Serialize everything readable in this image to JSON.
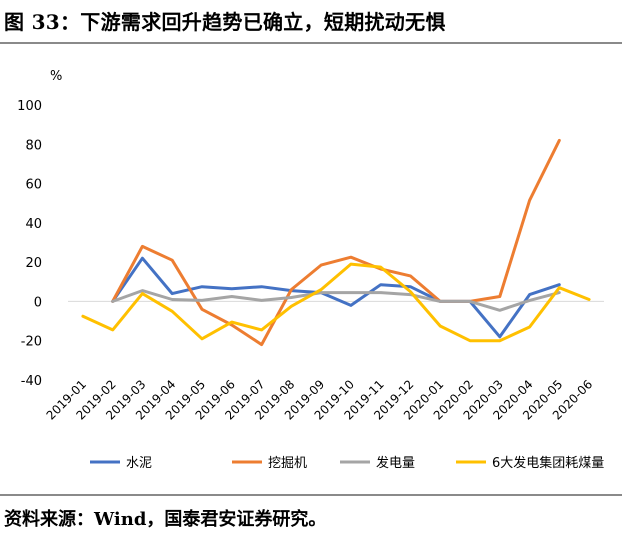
{
  "figure": {
    "title": "图 33：下游需求回升趋势已确立，短期扰动无惧",
    "source": "资料来源：Wind，国泰君安证券研究。"
  },
  "chart_data": {
    "type": "line",
    "ylabel": "%",
    "ylim": [
      -40,
      100
    ],
    "yticks": [
      -40,
      -20,
      0,
      20,
      40,
      60,
      80,
      100
    ],
    "grid": false,
    "legend_position": "bottom",
    "x": [
      "2019-01",
      "2019-02",
      "2019-03",
      "2019-04",
      "2019-05",
      "2019-06",
      "2019-07",
      "2019-08",
      "2019-09",
      "2019-10",
      "2019-11",
      "2019-12",
      "2020-01",
      "2020-02",
      "2020-03",
      "2020-04",
      "2020-05",
      "2020-06"
    ],
    "series": [
      {
        "name": "水泥",
        "color": "#4472C4",
        "values": [
          null,
          0,
          22,
          4,
          7.5,
          6.5,
          7.5,
          5.5,
          4.5,
          -2,
          8.5,
          7.5,
          0,
          0,
          -18,
          3.5,
          8.5,
          null
        ]
      },
      {
        "name": "挖掘机",
        "color": "#ED7D31",
        "values": [
          null,
          0,
          28,
          21,
          -4,
          -12,
          -22,
          6,
          18.5,
          22.5,
          16.5,
          13,
          0,
          0,
          2.5,
          51.5,
          82,
          null
        ]
      },
      {
        "name": "发电量",
        "color": "#A5A5A5",
        "values": [
          null,
          0,
          5.5,
          1,
          0.5,
          2.5,
          0.5,
          2,
          4.5,
          4.5,
          4.5,
          3.5,
          0,
          0,
          -4.5,
          0.5,
          4.5,
          null
        ]
      },
      {
        "name": "6大发电集团耗煤量",
        "color": "#FFC000",
        "values": [
          -7.5,
          -14.5,
          4,
          -5,
          -19,
          -10.5,
          -14.5,
          -2.5,
          6,
          19,
          17.5,
          5,
          -12.5,
          -20,
          -20,
          -13,
          7,
          1
        ]
      }
    ]
  }
}
